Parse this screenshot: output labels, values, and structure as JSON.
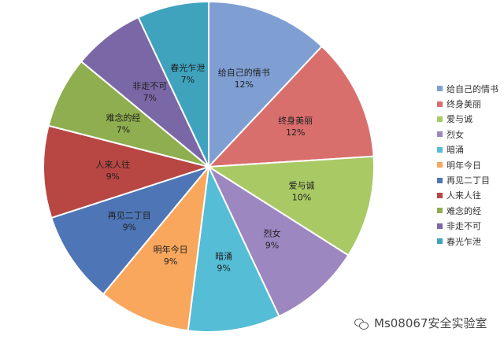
{
  "chart_data": {
    "type": "pie",
    "categories": [
      "给自己的情书",
      "终身美丽",
      "爱与诚",
      "烈女",
      "暗涌",
      "明年今日",
      "再见二丁目",
      "人来人往",
      "难念的经",
      "非走不可",
      "春光乍泄"
    ],
    "values": [
      12,
      12,
      10,
      9,
      9,
      9,
      9,
      9,
      7,
      7,
      7
    ],
    "value_labels": [
      "12%",
      "12%",
      "10%",
      "9%",
      "9%",
      "9%",
      "9%",
      "9%",
      "7%",
      "7%",
      "7%"
    ],
    "colors": [
      "#7f9fd3",
      "#d86f6c",
      "#a9c965",
      "#9d87c0",
      "#55bdd6",
      "#f8a75d",
      "#4e75b5",
      "#b84744",
      "#8fae4f",
      "#7a68a6",
      "#3fa3be"
    ],
    "legend_position": "right",
    "title": ""
  },
  "legend": {
    "items": [
      "给自己的情书",
      "终身美丽",
      "爱与诚",
      "烈女",
      "暗涌",
      "明年今日",
      "再见二丁目",
      "人来人往",
      "难念的经",
      "非走不可",
      "春光乍泄"
    ]
  },
  "watermark": {
    "text": "Ms08067安全实验室",
    "icon": "wechat-icon"
  }
}
